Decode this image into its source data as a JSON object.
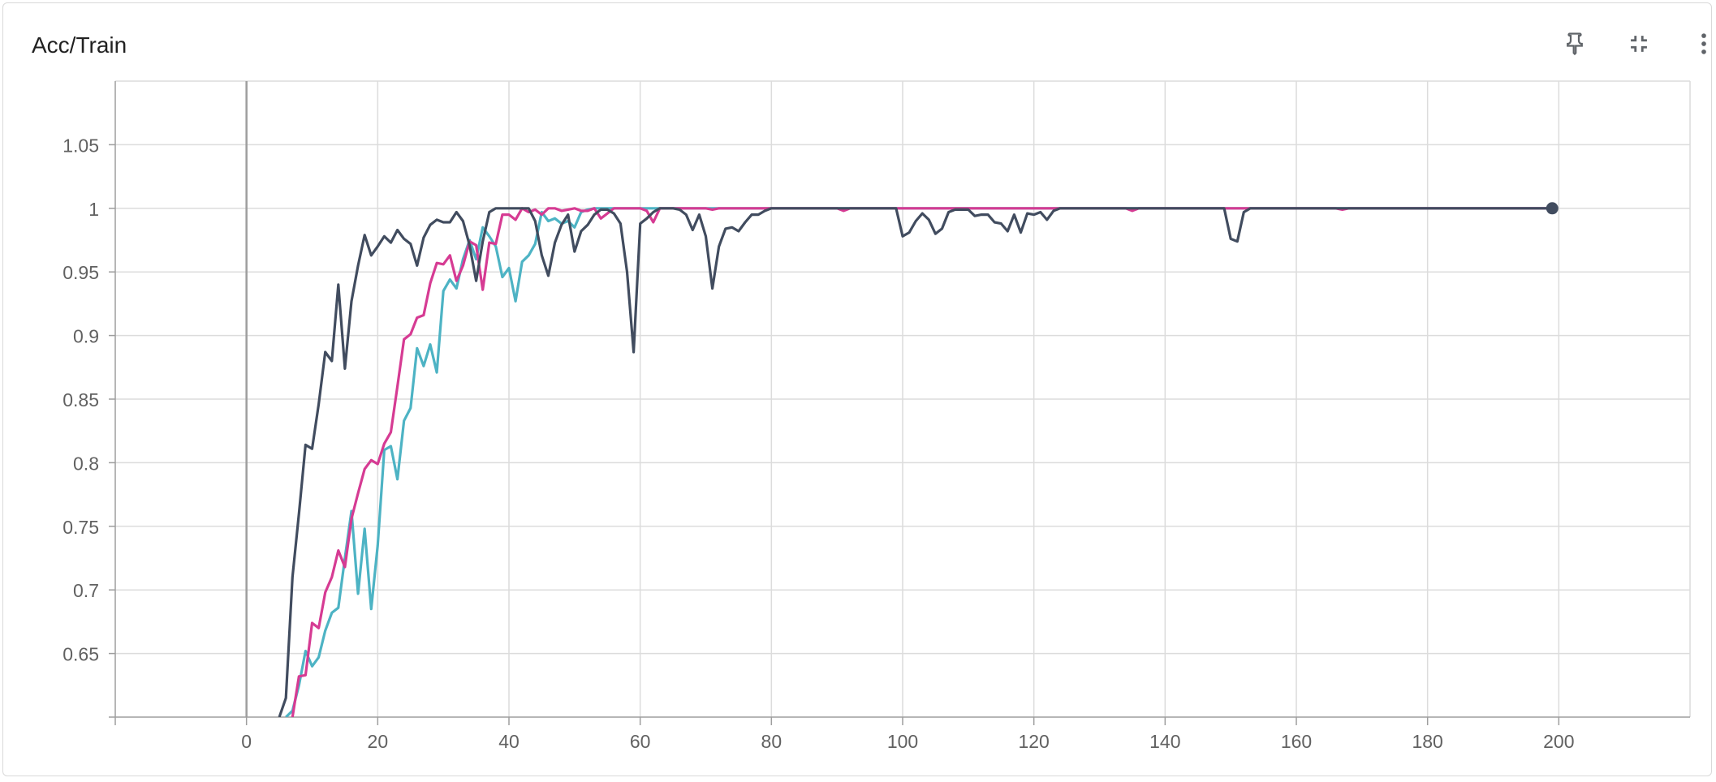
{
  "card": {
    "title": "Acc/Train",
    "icons": [
      "pin-icon",
      "collapse-icon",
      "more-vert-icon"
    ]
  },
  "colors": {
    "grid": "#dcdcdc",
    "axis": "#9e9e9e",
    "tick_text": "#616161",
    "series_cyan": "#4db3c4",
    "series_pink": "#d63b93",
    "series_dark": "#414c5f"
  },
  "chart_data": {
    "type": "line",
    "title": "Acc/Train",
    "xlabel": "",
    "ylabel": "",
    "xlim": [
      -20,
      220
    ],
    "ylim": [
      0.6,
      1.1
    ],
    "xticks": [
      0,
      20,
      40,
      60,
      80,
      100,
      120,
      140,
      160,
      180,
      200
    ],
    "yticks": [
      0.65,
      0.7,
      0.75,
      0.8,
      0.85,
      0.9,
      0.95,
      1,
      1.05
    ],
    "ytick_labels": [
      "0.65",
      "0.7",
      "0.75",
      "0.8",
      "0.85",
      "0.9",
      "0.95",
      "1",
      "1.05"
    ],
    "grid": true,
    "series": [
      {
        "color_key": "series_cyan",
        "points": [
          [
            6,
            0.6
          ],
          [
            7,
            0.605
          ],
          [
            8,
            0.625
          ],
          [
            9,
            0.652
          ],
          [
            10,
            0.64
          ],
          [
            11,
            0.647
          ],
          [
            12,
            0.668
          ],
          [
            13,
            0.682
          ],
          [
            14,
            0.686
          ],
          [
            15,
            0.725
          ],
          [
            16,
            0.762
          ],
          [
            17,
            0.697
          ],
          [
            18,
            0.748
          ],
          [
            19,
            0.685
          ],
          [
            20,
            0.735
          ],
          [
            21,
            0.81
          ],
          [
            22,
            0.813
          ],
          [
            23,
            0.787
          ],
          [
            24,
            0.833
          ],
          [
            25,
            0.843
          ],
          [
            26,
            0.89
          ],
          [
            27,
            0.876
          ],
          [
            28,
            0.893
          ],
          [
            29,
            0.871
          ],
          [
            30,
            0.935
          ],
          [
            31,
            0.944
          ],
          [
            32,
            0.937
          ],
          [
            33,
            0.96
          ],
          [
            34,
            0.975
          ],
          [
            35,
            0.96
          ],
          [
            36,
            0.985
          ],
          [
            37,
            0.978
          ],
          [
            38,
            0.97
          ],
          [
            39,
            0.946
          ],
          [
            40,
            0.953
          ],
          [
            41,
            0.927
          ],
          [
            42,
            0.958
          ],
          [
            43,
            0.963
          ],
          [
            44,
            0.972
          ],
          [
            45,
            0.997
          ],
          [
            46,
            0.99
          ],
          [
            47,
            0.992
          ],
          [
            48,
            0.988
          ],
          [
            49,
            0.99
          ],
          [
            50,
            0.985
          ],
          [
            51,
            0.997
          ],
          [
            52,
            0.999
          ],
          [
            53,
            1.0
          ],
          [
            55,
            1.0
          ],
          [
            60,
            1.0
          ],
          [
            80,
            1.0
          ],
          [
            100,
            1.0
          ],
          [
            140,
            1.0
          ],
          [
            199,
            1.0
          ]
        ]
      },
      {
        "color_key": "series_pink",
        "points": [
          [
            7,
            0.6
          ],
          [
            8,
            0.632
          ],
          [
            9,
            0.633
          ],
          [
            10,
            0.674
          ],
          [
            11,
            0.67
          ],
          [
            12,
            0.698
          ],
          [
            13,
            0.71
          ],
          [
            14,
            0.731
          ],
          [
            15,
            0.718
          ],
          [
            16,
            0.756
          ],
          [
            17,
            0.776
          ],
          [
            18,
            0.795
          ],
          [
            19,
            0.802
          ],
          [
            20,
            0.799
          ],
          [
            21,
            0.815
          ],
          [
            22,
            0.824
          ],
          [
            23,
            0.86
          ],
          [
            24,
            0.897
          ],
          [
            25,
            0.901
          ],
          [
            26,
            0.914
          ],
          [
            27,
            0.916
          ],
          [
            28,
            0.941
          ],
          [
            29,
            0.957
          ],
          [
            30,
            0.956
          ],
          [
            31,
            0.963
          ],
          [
            32,
            0.943
          ],
          [
            33,
            0.955
          ],
          [
            34,
            0.974
          ],
          [
            35,
            0.971
          ],
          [
            36,
            0.936
          ],
          [
            37,
            0.973
          ],
          [
            38,
            0.972
          ],
          [
            39,
            0.995
          ],
          [
            40,
            0.995
          ],
          [
            41,
            0.991
          ],
          [
            42,
            1.0
          ],
          [
            43,
            0.997
          ],
          [
            44,
            0.999
          ],
          [
            45,
            0.995
          ],
          [
            46,
            1.0
          ],
          [
            47,
            1.0
          ],
          [
            48,
            0.998
          ],
          [
            49,
            0.999
          ],
          [
            50,
            1.0
          ],
          [
            51,
            0.998
          ],
          [
            52,
            0.998
          ],
          [
            53,
            1.0
          ],
          [
            54,
            0.992
          ],
          [
            55,
            0.996
          ],
          [
            56,
            1.0
          ],
          [
            58,
            1.0
          ],
          [
            60,
            1.0
          ],
          [
            61,
            0.998
          ],
          [
            62,
            0.989
          ],
          [
            63,
            1.0
          ],
          [
            70,
            1.0
          ],
          [
            71,
            0.999
          ],
          [
            72,
            1.0
          ],
          [
            80,
            1.0
          ],
          [
            90,
            1.0
          ],
          [
            91,
            0.998
          ],
          [
            92,
            1.0
          ],
          [
            100,
            1.0
          ],
          [
            134,
            1.0
          ],
          [
            135,
            0.998
          ],
          [
            136,
            1.0
          ],
          [
            166,
            1.0
          ],
          [
            167,
            0.999
          ],
          [
            168,
            1.0
          ],
          [
            199,
            1.0
          ]
        ]
      },
      {
        "color_key": "series_dark",
        "points": [
          [
            5,
            0.6
          ],
          [
            6,
            0.615
          ],
          [
            7,
            0.71
          ],
          [
            8,
            0.76
          ],
          [
            9,
            0.814
          ],
          [
            10,
            0.811
          ],
          [
            11,
            0.846
          ],
          [
            12,
            0.887
          ],
          [
            13,
            0.88
          ],
          [
            14,
            0.94
          ],
          [
            15,
            0.874
          ],
          [
            16,
            0.927
          ],
          [
            17,
            0.955
          ],
          [
            18,
            0.979
          ],
          [
            19,
            0.963
          ],
          [
            20,
            0.97
          ],
          [
            21,
            0.978
          ],
          [
            22,
            0.973
          ],
          [
            23,
            0.983
          ],
          [
            24,
            0.976
          ],
          [
            25,
            0.972
          ],
          [
            26,
            0.955
          ],
          [
            27,
            0.977
          ],
          [
            28,
            0.987
          ],
          [
            29,
            0.991
          ],
          [
            30,
            0.989
          ],
          [
            31,
            0.989
          ],
          [
            32,
            0.997
          ],
          [
            33,
            0.99
          ],
          [
            34,
            0.971
          ],
          [
            35,
            0.943
          ],
          [
            36,
            0.974
          ],
          [
            37,
            0.997
          ],
          [
            38,
            1.0
          ],
          [
            39,
            1.0
          ],
          [
            42,
            1.0
          ],
          [
            43,
            1.0
          ],
          [
            44,
            0.99
          ],
          [
            45,
            0.963
          ],
          [
            46,
            0.947
          ],
          [
            47,
            0.973
          ],
          [
            48,
            0.987
          ],
          [
            49,
            0.995
          ],
          [
            50,
            0.966
          ],
          [
            51,
            0.982
          ],
          [
            52,
            0.987
          ],
          [
            53,
            0.995
          ],
          [
            54,
            0.999
          ],
          [
            55,
            0.999
          ],
          [
            56,
            0.996
          ],
          [
            57,
            0.988
          ],
          [
            58,
            0.95
          ],
          [
            59,
            0.887
          ],
          [
            60,
            0.988
          ],
          [
            61,
            0.992
          ],
          [
            62,
            0.997
          ],
          [
            63,
            1.0
          ],
          [
            65,
            1.0
          ],
          [
            66,
            0.999
          ],
          [
            67,
            0.995
          ],
          [
            68,
            0.983
          ],
          [
            69,
            0.995
          ],
          [
            70,
            0.978
          ],
          [
            71,
            0.937
          ],
          [
            72,
            0.97
          ],
          [
            73,
            0.984
          ],
          [
            74,
            0.985
          ],
          [
            75,
            0.982
          ],
          [
            76,
            0.989
          ],
          [
            77,
            0.995
          ],
          [
            78,
            0.995
          ],
          [
            79,
            0.998
          ],
          [
            80,
            1.0
          ],
          [
            99,
            1.0
          ],
          [
            100,
            0.978
          ],
          [
            101,
            0.981
          ],
          [
            102,
            0.99
          ],
          [
            103,
            0.996
          ],
          [
            104,
            0.991
          ],
          [
            105,
            0.98
          ],
          [
            106,
            0.984
          ],
          [
            107,
            0.997
          ],
          [
            108,
            0.999
          ],
          [
            110,
            0.999
          ],
          [
            111,
            0.994
          ],
          [
            112,
            0.995
          ],
          [
            113,
            0.995
          ],
          [
            114,
            0.989
          ],
          [
            115,
            0.988
          ],
          [
            116,
            0.982
          ],
          [
            117,
            0.995
          ],
          [
            118,
            0.981
          ],
          [
            119,
            0.996
          ],
          [
            120,
            0.995
          ],
          [
            121,
            0.997
          ],
          [
            122,
            0.991
          ],
          [
            123,
            0.998
          ],
          [
            124,
            1.0
          ],
          [
            149,
            1.0
          ],
          [
            150,
            0.976
          ],
          [
            151,
            0.974
          ],
          [
            152,
            0.997
          ],
          [
            153,
            1.0
          ],
          [
            199,
            1.0
          ]
        ]
      }
    ],
    "end_marker": {
      "x": 199,
      "y": 1.0,
      "color_key": "series_dark"
    }
  }
}
